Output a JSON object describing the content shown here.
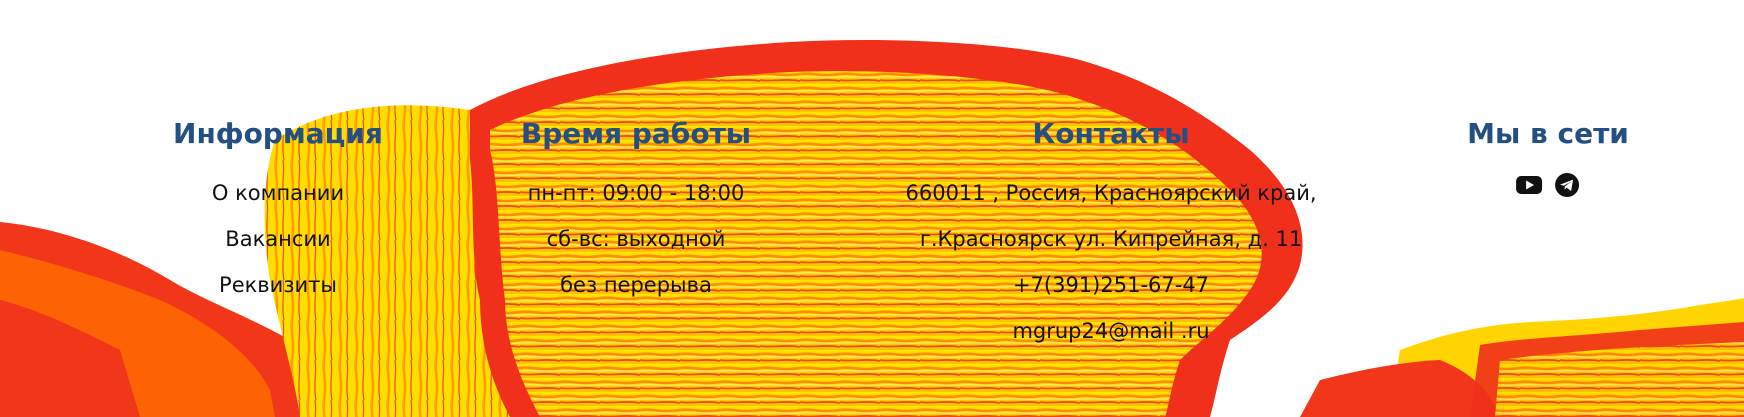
{
  "footer": {
    "information": {
      "heading": "Информация",
      "links": [
        "О компании",
        "Вакансии",
        "Реквизиты"
      ]
    },
    "hours": {
      "heading": "Время работы",
      "lines": [
        "пн-пт: 09:00 - 18:00",
        "сб-вс: выходной",
        "без перерыва"
      ]
    },
    "contacts": {
      "heading": "Контакты",
      "address_line1": "660011 , Россия, Красноярский край,",
      "address_line2": "г.Красноярск ул. Кипрейная, д. 11",
      "phone": "+7(391)251-67-47",
      "email": "mgrup24@mail .ru"
    },
    "social": {
      "heading": "Мы в сети",
      "icons": [
        "youtube-icon",
        "telegram-icon"
      ]
    }
  },
  "colors": {
    "heading": "#234f83",
    "text": "#111111",
    "paint_red": "#f0301a",
    "paint_orange": "#ff7a00",
    "paint_yellow": "#ffd400"
  }
}
